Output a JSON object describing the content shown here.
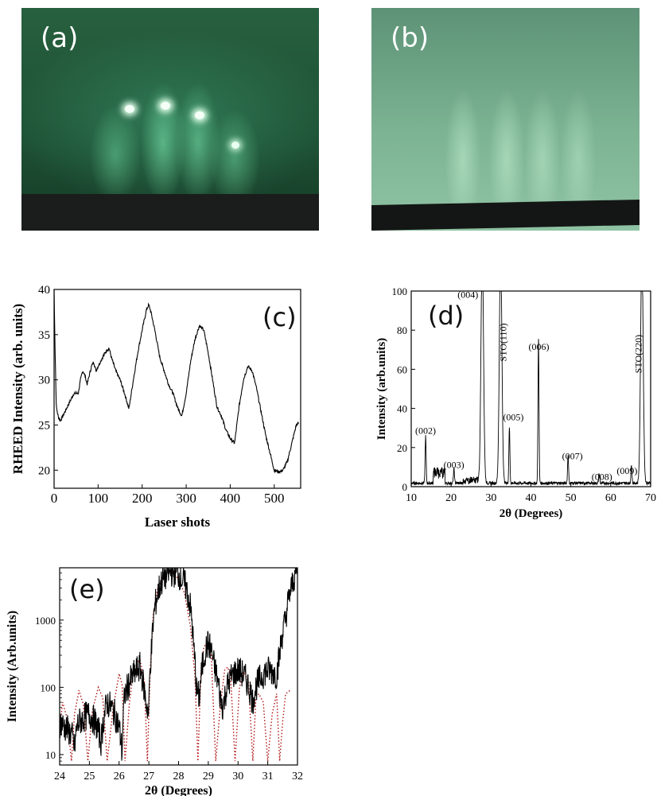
{
  "panels": {
    "a": {
      "label": "(a)"
    },
    "b": {
      "label": "(b)"
    },
    "c": {
      "label": "(c)"
    },
    "d": {
      "label": "(d)"
    },
    "e": {
      "label": "(e)"
    }
  },
  "colors": {
    "trace": "#000000",
    "fit": "#b01414"
  },
  "chart_data": [
    {
      "id": "c",
      "type": "line",
      "xlabel": "Laser shots",
      "ylabel": "RHEED Intensity (arb. units)",
      "xlim": [
        0,
        560
      ],
      "ylim": [
        18,
        40
      ],
      "xticks": [
        "0",
        "100",
        "200",
        "300",
        "400",
        "500"
      ],
      "xtick_values": [
        0,
        100,
        200,
        300,
        400,
        500
      ],
      "yticks": [
        "20",
        "25",
        "30",
        "35",
        "40"
      ],
      "ytick_values": [
        20,
        25,
        30,
        35,
        40
      ],
      "series": [
        {
          "x": [
            0,
            2,
            5,
            10,
            15,
            25,
            35,
            45,
            55,
            60,
            65,
            70,
            75,
            80,
            85,
            90,
            95,
            100,
            110,
            120,
            125,
            130,
            140,
            150,
            160,
            170,
            180,
            190,
            200,
            210,
            215,
            220,
            230,
            240,
            250,
            260,
            270,
            280,
            290,
            300,
            310,
            320,
            330,
            340,
            350,
            360,
            370,
            380,
            390,
            400,
            410,
            420,
            430,
            440,
            450,
            460,
            470,
            480,
            490,
            500,
            510,
            520,
            530,
            540,
            550,
            556
          ],
          "y": [
            40,
            34,
            27,
            25.8,
            25.5,
            26.5,
            27.5,
            28.5,
            28.5,
            30,
            31,
            30.5,
            29.5,
            30.5,
            31.5,
            32,
            31,
            31.5,
            32.5,
            33.3,
            33.5,
            32.5,
            31,
            30,
            28.5,
            26.8,
            30,
            33,
            35.5,
            37.8,
            38.3,
            37.5,
            35.2,
            32.5,
            31,
            29.5,
            28.5,
            27,
            26,
            28.5,
            32,
            34.5,
            36,
            35.5,
            33,
            30,
            27,
            26,
            24.5,
            23.5,
            23,
            27,
            30,
            31.5,
            31,
            29,
            26.5,
            24,
            22,
            20,
            19.8,
            20,
            21,
            23,
            25,
            25.2
          ]
        }
      ]
    },
    {
      "id": "d",
      "type": "line",
      "xlabel": "2θ (Degrees)",
      "ylabel": "Intensity (arb.units)",
      "xlim": [
        10,
        70
      ],
      "ylim": [
        0,
        100
      ],
      "xticks": [
        "10",
        "20",
        "30",
        "40",
        "50",
        "60",
        "70"
      ],
      "xtick_values": [
        10,
        20,
        30,
        40,
        50,
        60,
        70
      ],
      "yticks": [
        "0",
        "20",
        "40",
        "60",
        "80",
        "100"
      ],
      "ytick_values": [
        0,
        20,
        40,
        60,
        80,
        100
      ],
      "peaks": [
        {
          "x": 13.6,
          "y": 20,
          "label": "(002)",
          "rot": false
        },
        {
          "x": 20.7,
          "y": 6,
          "label": "(003)",
          "rot": false
        },
        {
          "x": 27.8,
          "y": 100,
          "label": "(004)",
          "rot": false
        },
        {
          "x": 32.4,
          "y": 100,
          "label": "STO(110)",
          "rot": true
        },
        {
          "x": 34.6,
          "y": 24,
          "label": "(005)",
          "rot": false
        },
        {
          "x": 41.9,
          "y": 62,
          "label": "(006)",
          "rot": false
        },
        {
          "x": 49.3,
          "y": 12,
          "label": "(007)",
          "rot": false
        },
        {
          "x": 57.1,
          "y": 4,
          "label": "(008)",
          "rot": false
        },
        {
          "x": 65.2,
          "y": 8,
          "label": "(009)",
          "rot": false
        },
        {
          "x": 67.8,
          "y": 100,
          "label": "STO(220)",
          "rot": true
        }
      ]
    },
    {
      "id": "e",
      "type": "line",
      "scale": "log",
      "xlabel": "2θ (Degrees)",
      "ylabel": "Intensity (Arb.units)",
      "xlim": [
        24,
        32
      ],
      "ylim": [
        7,
        6000
      ],
      "xticks": [
        "24",
        "25",
        "26",
        "27",
        "28",
        "29",
        "30",
        "31",
        "32"
      ],
      "xtick_values": [
        24,
        25,
        26,
        27,
        28,
        29,
        30,
        31,
        32
      ],
      "yticks": [
        "10",
        "100",
        "1000"
      ],
      "ytick_values": [
        10,
        100,
        1000
      ],
      "series": [
        {
          "name": "",
          "style": "solid",
          "x": [
            24.0,
            24.2,
            24.4,
            24.5,
            24.6,
            24.8,
            25.0,
            25.2,
            25.4,
            25.6,
            25.8,
            26.0,
            26.1,
            26.2,
            26.4,
            26.6,
            26.7,
            26.8,
            26.9,
            27.0,
            27.1,
            27.2,
            27.4,
            27.6,
            27.8,
            28.0,
            28.2,
            28.4,
            28.5,
            28.6,
            28.7,
            28.8,
            28.9,
            29.0,
            29.1,
            29.2,
            29.4,
            29.5,
            29.6,
            29.8,
            30.0,
            30.2,
            30.4,
            30.5,
            30.6,
            30.8,
            31.0,
            31.2,
            31.3,
            31.4,
            31.6,
            31.8,
            32.0
          ],
          "y": [
            30,
            25,
            20,
            12,
            28,
            35,
            40,
            30,
            15,
            60,
            45,
            25,
            10,
            80,
            130,
            180,
            200,
            120,
            60,
            40,
            400,
            1500,
            3500,
            4800,
            5200,
            4800,
            3500,
            1500,
            400,
            90,
            70,
            200,
            350,
            450,
            350,
            200,
            70,
            50,
            90,
            150,
            180,
            150,
            90,
            60,
            100,
            150,
            180,
            170,
            150,
            300,
            1000,
            3000,
            6000
          ]
        },
        {
          "name": "",
          "style": "dotted",
          "x": [
            24.0,
            24.1,
            24.25,
            24.4,
            24.5,
            24.65,
            24.8,
            24.95,
            25.1,
            25.3,
            25.45,
            25.6,
            25.8,
            26.0,
            26.1,
            26.2,
            26.35,
            26.5,
            26.7,
            26.85,
            26.95,
            27.05,
            27.15,
            27.3,
            27.5,
            27.7,
            27.85,
            28.0,
            28.2,
            28.4,
            28.55,
            28.65,
            28.75,
            28.85,
            28.95,
            29.1,
            29.25,
            29.4,
            29.55,
            29.65,
            29.75,
            29.9,
            30.05,
            30.2,
            30.35,
            30.5,
            30.6,
            30.7,
            30.85,
            31.0,
            31.15,
            31.3,
            31.4,
            31.5,
            31.6,
            31.75
          ],
          "y": [
            25,
            60,
            35,
            8,
            40,
            90,
            55,
            8,
            45,
            100,
            70,
            8,
            50,
            160,
            110,
            8,
            60,
            200,
            260,
            120,
            8,
            200,
            1200,
            3000,
            4700,
            5200,
            4900,
            4000,
            2500,
            800,
            150,
            8,
            150,
            400,
            450,
            300,
            8,
            50,
            180,
            200,
            150,
            8,
            100,
            170,
            120,
            8,
            70,
            80,
            60,
            8,
            40,
            80,
            8,
            30,
            80,
            90
          ]
        }
      ]
    }
  ]
}
